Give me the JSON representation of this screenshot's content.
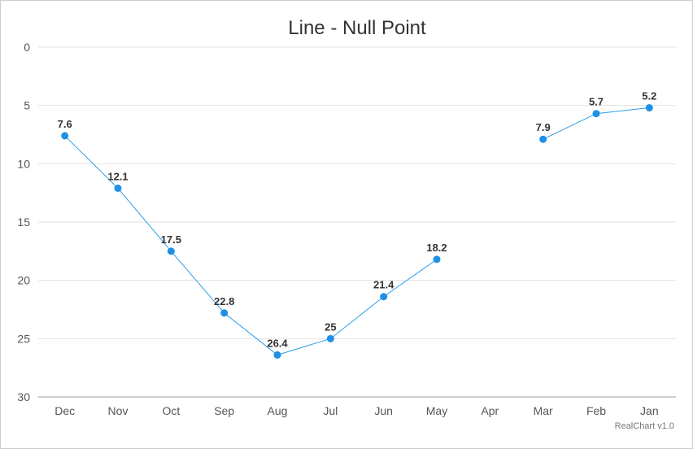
{
  "chart_data": {
    "type": "line",
    "title": "Line - Null Point",
    "categories": [
      "Dec",
      "Nov",
      "Oct",
      "Sep",
      "Aug",
      "Jul",
      "Jun",
      "May",
      "Apr",
      "Mar",
      "Feb",
      "Jan"
    ],
    "series": [
      {
        "values": [
          7.6,
          12.1,
          17.5,
          22.8,
          26.4,
          25,
          21.4,
          18.2,
          null,
          7.9,
          5.7,
          5.2
        ]
      }
    ],
    "data_labels": [
      "7.6",
      "12.1",
      "17.5",
      "22.8",
      "26.4",
      "25",
      "21.4",
      "18.2",
      null,
      "7.9",
      "5.7",
      "5.2"
    ],
    "y_ticks": [
      "0",
      "5",
      "10",
      "15",
      "20",
      "25",
      "30"
    ],
    "ylim": [
      0,
      30
    ],
    "y_reversed": true,
    "grid": true,
    "legend": "none",
    "credit": "RealChart v1.0",
    "colors": {
      "series": "#1e90e6",
      "line": "#2b9de8",
      "grid": "#e2e2e2",
      "axis": "#bdbdbd"
    }
  }
}
